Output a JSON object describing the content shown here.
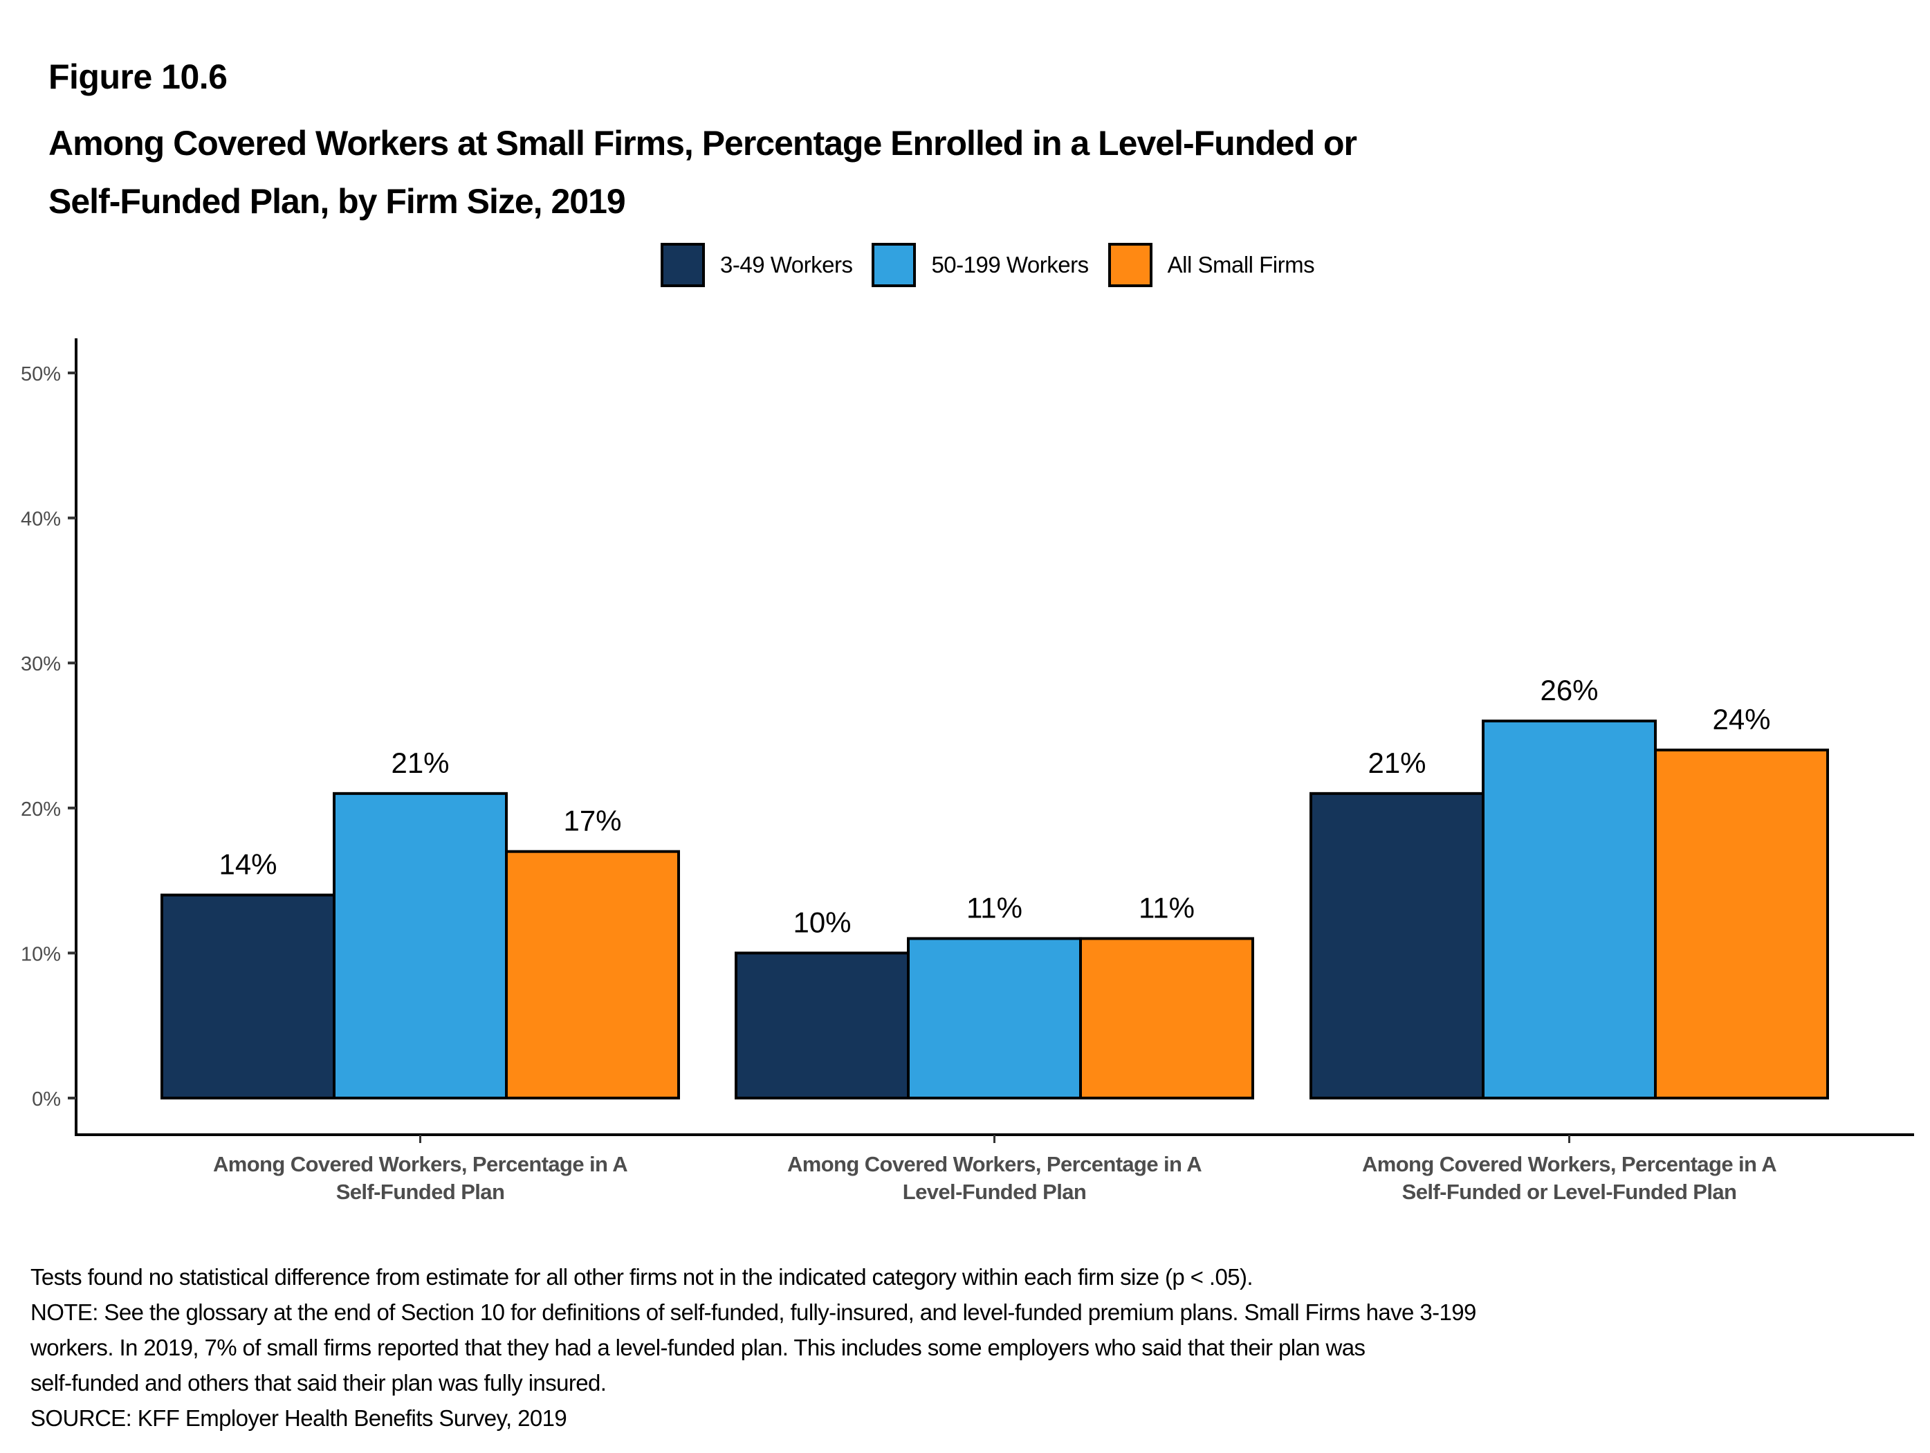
{
  "figure_label": "Figure 10.6",
  "title_lines": [
    "Among Covered Workers at Small Firms, Percentage Enrolled in a Level-Funded or",
    "Self-Funded Plan, by Firm Size, 2019"
  ],
  "chart_data": {
    "type": "bar",
    "title": "Among Covered Workers at Small Firms, Percentage Enrolled in a Level-Funded or Self-Funded Plan, by Firm Size, 2019",
    "categories": [
      [
        "Among Covered Workers, Percentage in A",
        "Self-Funded Plan"
      ],
      [
        "Among Covered Workers, Percentage in A",
        "Level-Funded Plan"
      ],
      [
        "Among Covered Workers, Percentage in A",
        "Self-Funded or Level-Funded Plan"
      ]
    ],
    "series": [
      {
        "name": "3-49 Workers",
        "color": "#15355a",
        "values": [
          14,
          10,
          21
        ],
        "labels": [
          "14%",
          "10%",
          "21%"
        ]
      },
      {
        "name": "50-199 Workers",
        "color": "#32a2e0",
        "values": [
          21,
          11,
          26
        ],
        "labels": [
          "21%",
          "11%",
          "26%"
        ]
      },
      {
        "name": "All Small Firms",
        "color": "#ff8913",
        "values": [
          17,
          11,
          24
        ],
        "labels": [
          "17%",
          "11%",
          "24%"
        ]
      }
    ],
    "xlabel": "",
    "ylabel": "",
    "ylim": [
      0,
      50
    ],
    "yticks": [
      0,
      10,
      20,
      30,
      40,
      50
    ],
    "ytick_labels": [
      "0%",
      "10%",
      "20%",
      "30%",
      "40%",
      "50%"
    ],
    "grid": false,
    "legend_position": "top-center"
  },
  "notes": [
    "Tests found no statistical difference from estimate for all other firms not in the indicated category within each firm size (p < .05).",
    "NOTE: See the glossary at the end of Section 10 for definitions of self-funded, fully-insured, and level-funded premium plans. Small Firms have 3-199",
    "workers.  In 2019, 7% of small firms reported that they had a level-funded plan. This includes some employers who said that their plan was",
    "self-funded and others that said their plan was fully insured.",
    "SOURCE: KFF Employer Health Benefits Survey, 2019"
  ]
}
